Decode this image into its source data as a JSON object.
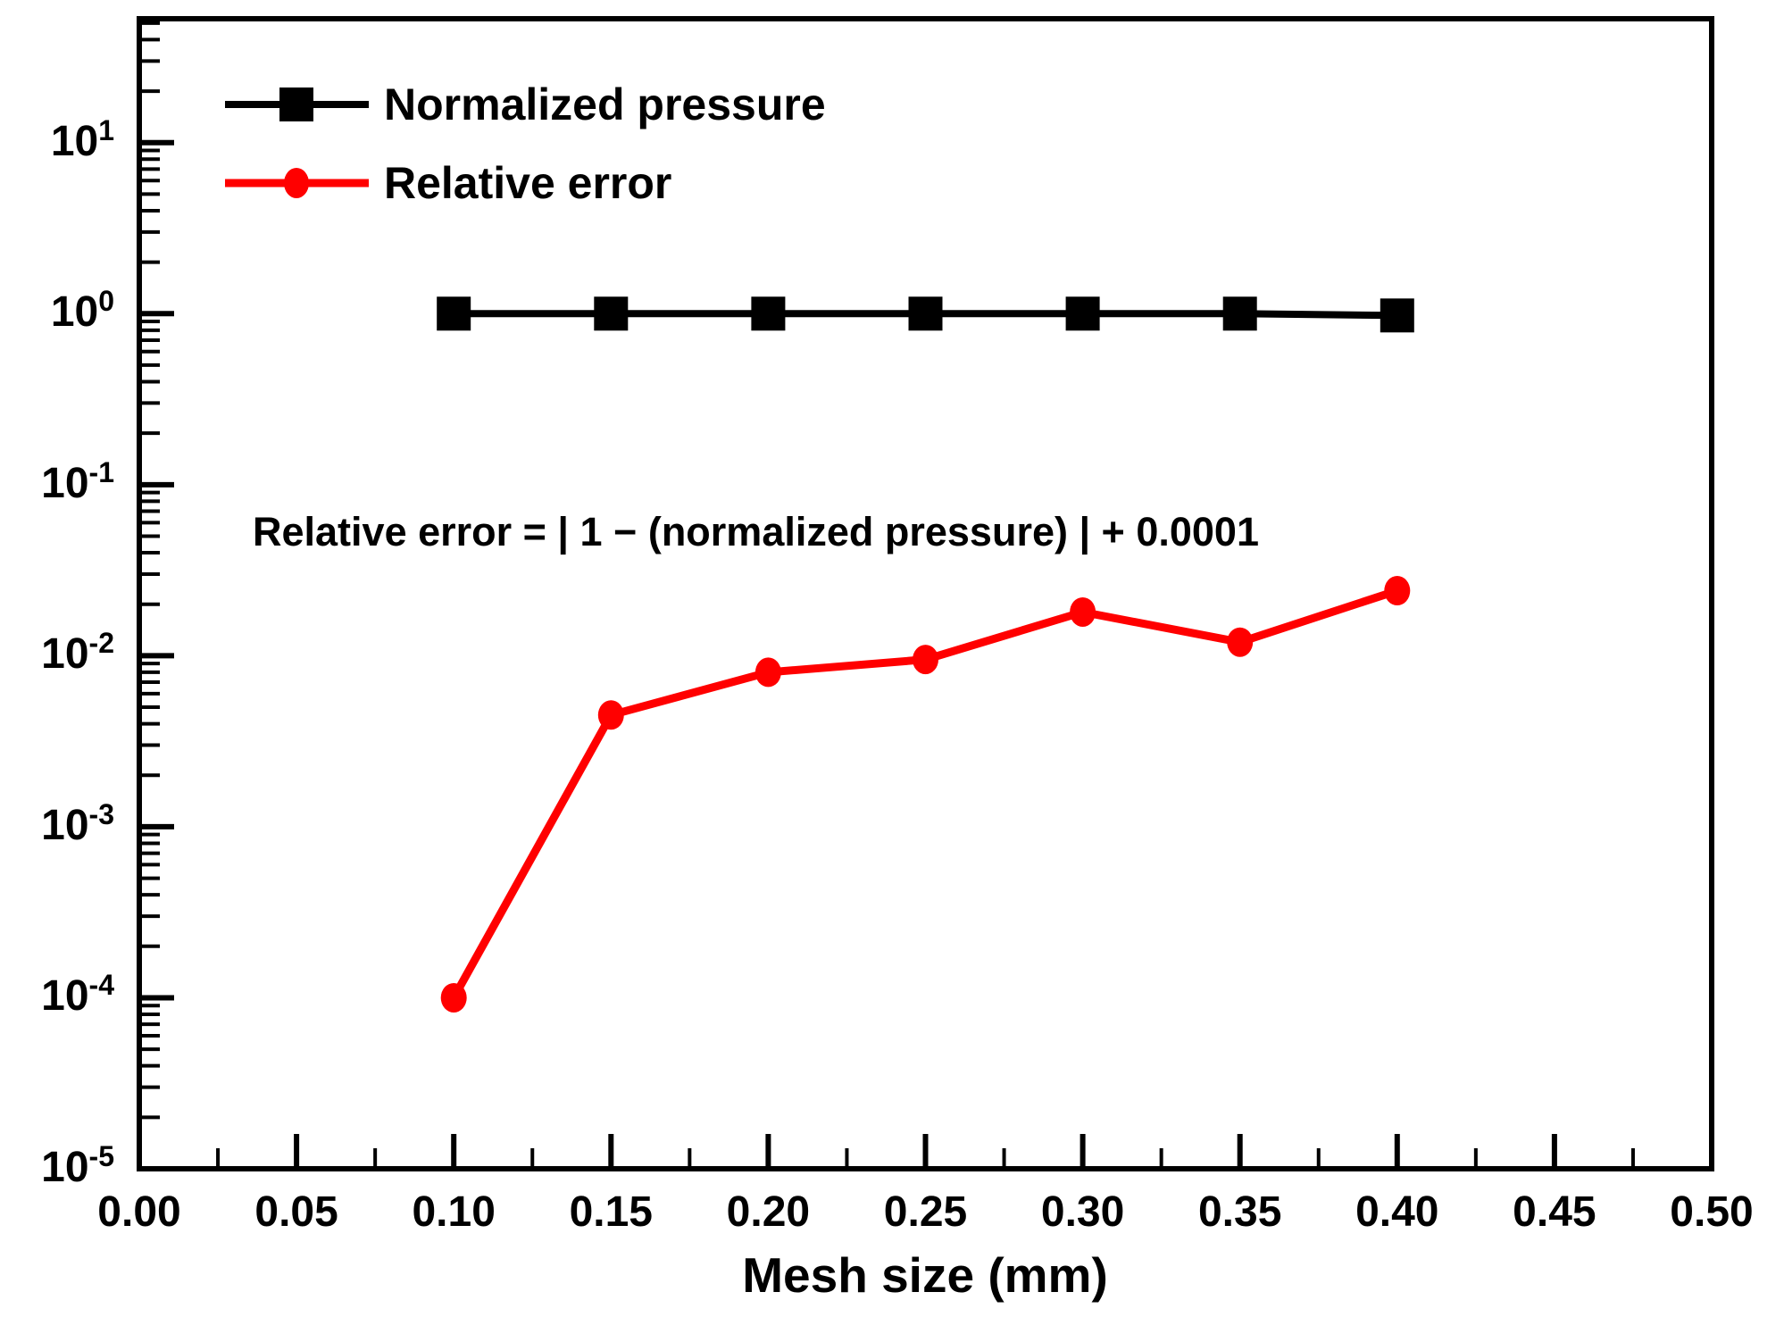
{
  "figure": {
    "background": "#ffffff",
    "text_color": "#000000"
  },
  "chart_data": {
    "type": "line",
    "title": "",
    "xlabel": "Mesh size (mm)",
    "ylabel": "",
    "x": [
      0.1,
      0.15,
      0.2,
      0.25,
      0.3,
      0.35,
      0.4
    ],
    "series": [
      {
        "name": "Normalized pressure",
        "color": "#000000",
        "marker": "square",
        "values": [
          1.0,
          1.0,
          1.0,
          1.0,
          1.0,
          1.0,
          0.976
        ]
      },
      {
        "name": "Relative error",
        "color": "#ff0000",
        "marker": "circle",
        "values": [
          0.0001,
          0.0045,
          0.008,
          0.0095,
          0.018,
          0.012,
          0.024
        ]
      }
    ],
    "xlim": [
      0,
      0.5
    ],
    "ylim": [
      1e-05,
      53
    ],
    "y_scale": "log",
    "grid": false,
    "legend_position": "top-left",
    "annotation": "Relative error = | 1 − (normalized pressure) | + 0.0001"
  },
  "axes": {
    "x": {
      "title": "Mesh size (mm)",
      "tick_labels": [
        "0.00",
        "0.05",
        "0.10",
        "0.15",
        "0.20",
        "0.25",
        "0.30",
        "0.35",
        "0.40",
        "0.45",
        "0.50"
      ],
      "minor_tick_step": 0.025
    },
    "y": {
      "tick_labels": [
        {
          "base": "10",
          "exp": "1"
        },
        {
          "base": "10",
          "exp": "0"
        },
        {
          "base": "10",
          "exp": "-1"
        },
        {
          "base": "10",
          "exp": "-2"
        },
        {
          "base": "10",
          "exp": "-3"
        },
        {
          "base": "10",
          "exp": "-4"
        },
        {
          "base": "10",
          "exp": "-5"
        }
      ]
    }
  }
}
